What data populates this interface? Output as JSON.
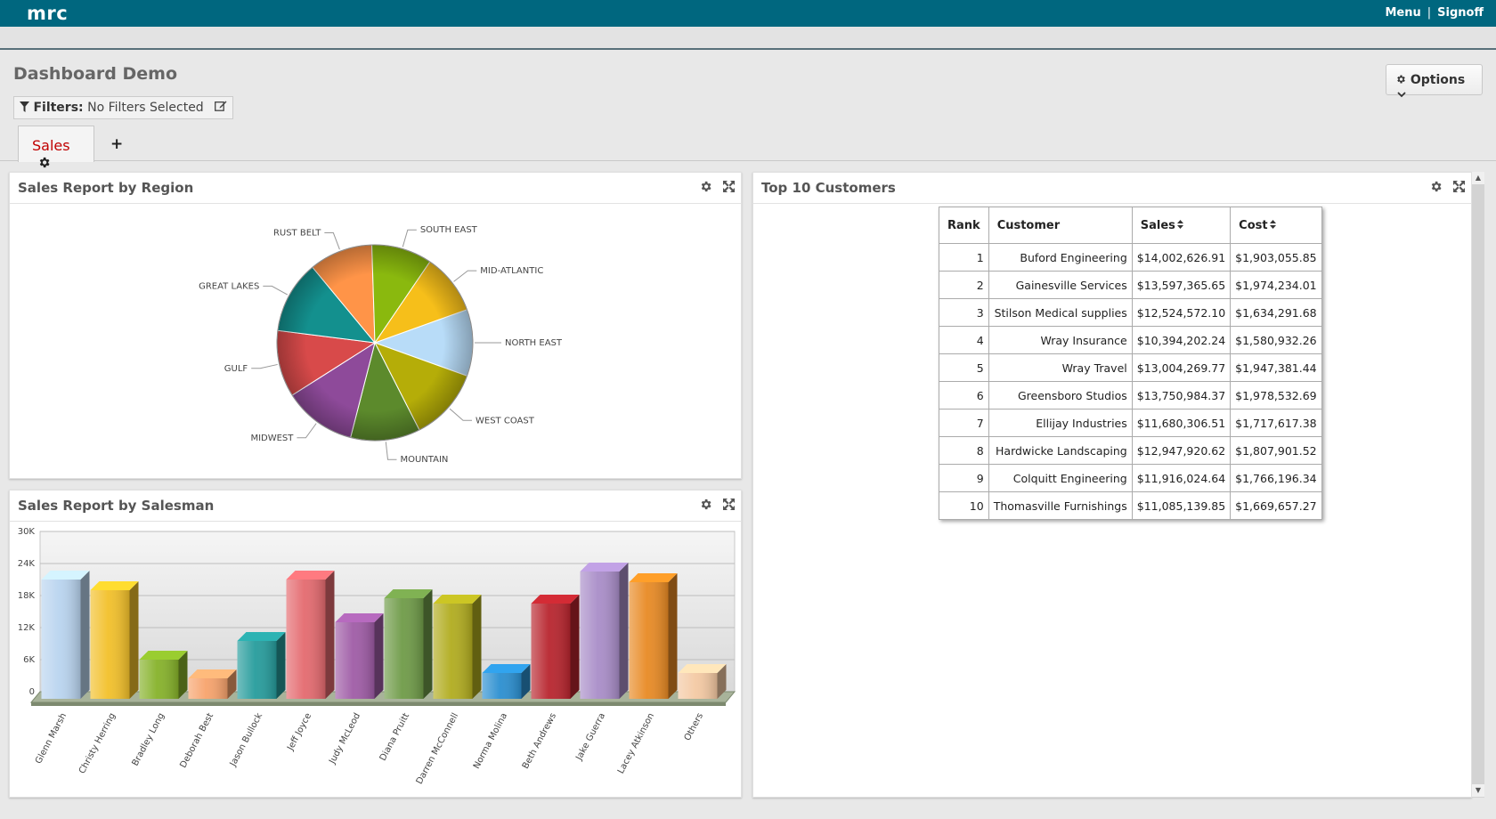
{
  "app": {
    "brand": "mrc",
    "menu": "Menu",
    "separator": "|",
    "signoff": "Signoff"
  },
  "page": {
    "title": "Dashboard Demo"
  },
  "filters": {
    "label": "Filters:",
    "value": "No Filters Selected"
  },
  "options": {
    "label": "Options"
  },
  "tabs": [
    {
      "label": "Sales"
    }
  ],
  "tab_add": "+",
  "panels": {
    "region": {
      "title": "Sales Report by Region"
    },
    "salesman": {
      "title": "Sales Report by Salesman"
    },
    "customers": {
      "title": "Top 10 Customers"
    }
  },
  "chart_data": [
    {
      "type": "pie",
      "title": "Sales Report by Region",
      "labels": [
        "NORTH EAST",
        "WEST COAST",
        "MOUNTAIN",
        "MIDWEST",
        "GULF",
        "GREAT LAKES",
        "RUST BELT",
        "SOUTH EAST",
        "MID-ATLANTIC"
      ],
      "values": [
        11,
        12,
        11.5,
        12,
        11,
        12,
        10.5,
        10,
        10
      ],
      "colors": [
        "#b8dcf8",
        "#b5ad08",
        "#5c8a2c",
        "#8e4a9a",
        "#d84a4a",
        "#13908e",
        "#ff9448",
        "#8ab90e",
        "#f6bf1a"
      ]
    },
    {
      "type": "bar",
      "title": "Sales Report by Salesman",
      "categories": [
        "Glenn Marsh",
        "Christy Herring",
        "Bradley Long",
        "Deborah Best",
        "Jason Bullock",
        "Jeff Joyce",
        "Judy McLeod",
        "Diana Pruitt",
        "Darren McConnell",
        "Norma Molina",
        "Beth Andrews",
        "Jake Guerra",
        "Lacey Atkinson",
        "Others"
      ],
      "values": [
        22000,
        20000,
        7000,
        3500,
        10500,
        22000,
        14000,
        18500,
        17500,
        4500,
        17500,
        23500,
        21500,
        4500
      ],
      "ylim": [
        0,
        30000
      ],
      "yticks": [
        "0",
        "6K",
        "12K",
        "18K",
        "24K",
        "30K"
      ],
      "colors": [
        "#b9d4ef",
        "#f2c02a",
        "#86b22a",
        "#f7a36c",
        "#269c9c",
        "#e46a6f",
        "#9f5ca6",
        "#6f9b48",
        "#b1ac1f",
        "#2b8fd0",
        "#b8252e",
        "#a98dc8",
        "#e88a24",
        "#f4c9a3"
      ]
    }
  ],
  "customers": {
    "headers": [
      "Rank",
      "Customer",
      "Sales",
      "Cost"
    ],
    "rows": [
      [
        "1",
        "Buford Engineering",
        "$14,002,626.91",
        "$1,903,055.85"
      ],
      [
        "2",
        "Gainesville Services",
        "$13,597,365.65",
        "$1,974,234.01"
      ],
      [
        "3",
        "Stilson Medical supplies",
        "$12,524,572.10",
        "$1,634,291.68"
      ],
      [
        "4",
        "Wray Insurance",
        "$10,394,202.24",
        "$1,580,932.26"
      ],
      [
        "5",
        "Wray Travel",
        "$13,004,269.77",
        "$1,947,381.44"
      ],
      [
        "6",
        "Greensboro Studios",
        "$13,750,984.37",
        "$1,978,532.69"
      ],
      [
        "7",
        "Ellijay Industries",
        "$11,680,306.51",
        "$1,717,617.38"
      ],
      [
        "8",
        "Hardwicke Landscaping",
        "$12,947,920.62",
        "$1,807,901.52"
      ],
      [
        "9",
        "Colquitt Engineering",
        "$11,916,024.64",
        "$1,766,196.34"
      ],
      [
        "10",
        "Thomasville Furnishings",
        "$11,085,139.85",
        "$1,669,657.27"
      ]
    ]
  }
}
